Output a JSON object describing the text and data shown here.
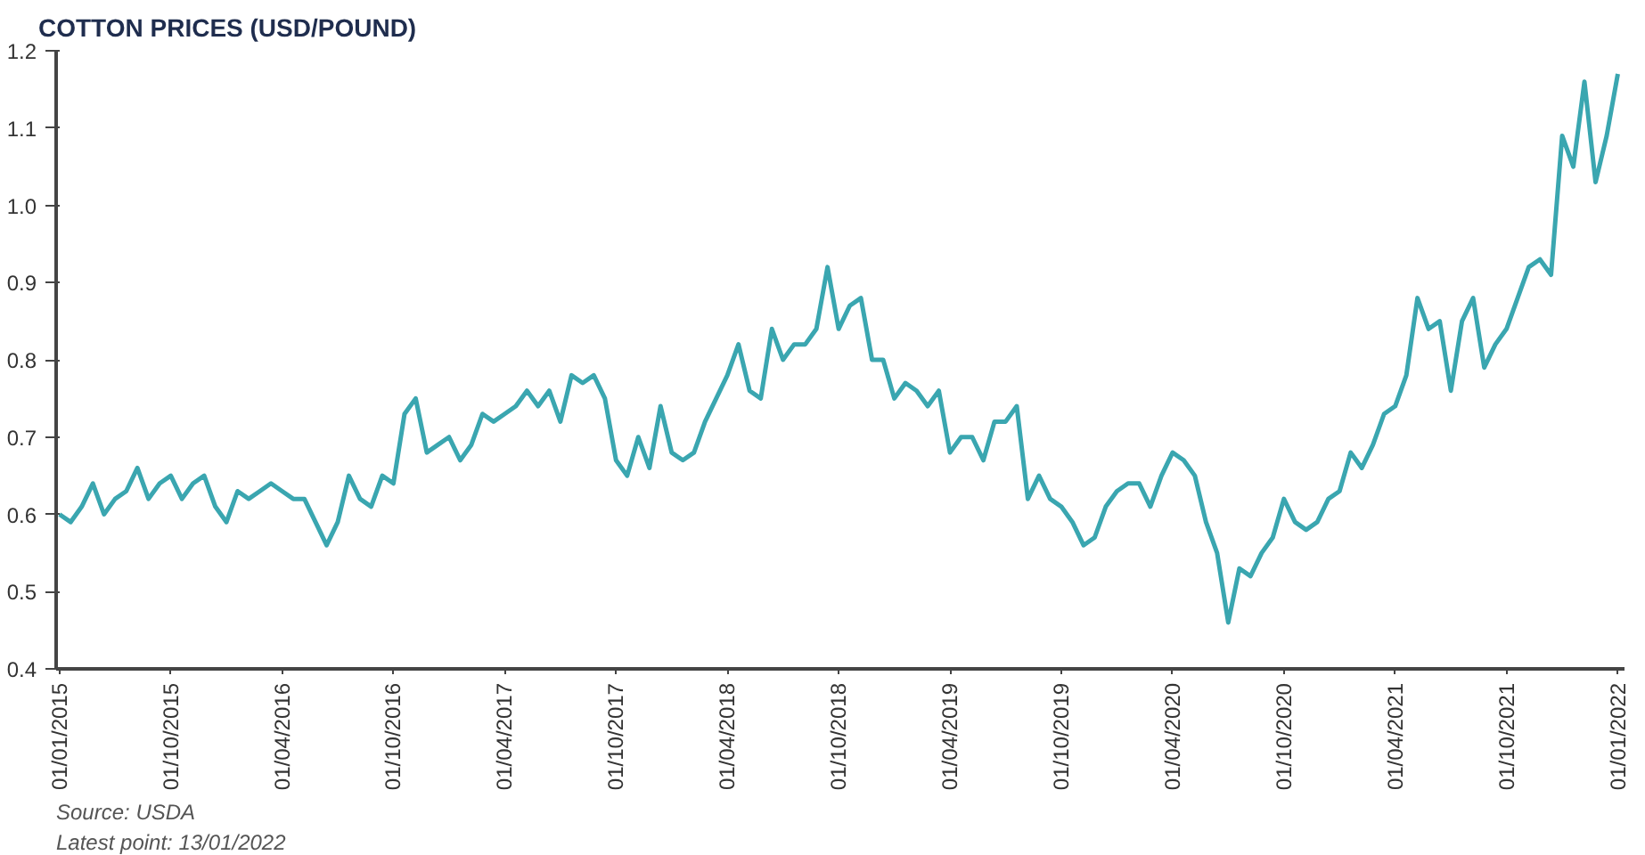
{
  "chart_data": {
    "type": "line",
    "title": "COTTON PRICES (USD/POUND)",
    "annotations": [
      "Source: USDA",
      "Latest point: 13/01/2022"
    ],
    "categories": [
      "01/01/2015",
      null,
      null,
      null,
      null,
      null,
      null,
      null,
      null,
      null,
      "01/10/2015",
      null,
      null,
      null,
      null,
      null,
      null,
      null,
      null,
      null,
      "01/04/2016",
      null,
      null,
      null,
      null,
      null,
      null,
      null,
      null,
      null,
      "01/10/2016",
      null,
      null,
      null,
      null,
      null,
      null,
      null,
      null,
      null,
      "01/04/2017",
      null,
      null,
      null,
      null,
      null,
      null,
      null,
      null,
      null,
      "01/10/2017",
      null,
      null,
      null,
      null,
      null,
      null,
      null,
      null,
      null,
      "01/04/2018",
      null,
      null,
      null,
      null,
      null,
      null,
      null,
      null,
      null,
      "01/10/2018",
      null,
      null,
      null,
      null,
      null,
      null,
      null,
      null,
      null,
      "01/04/2019",
      null,
      null,
      null,
      null,
      null,
      null,
      null,
      null,
      null,
      "01/10/2019",
      null,
      null,
      null,
      null,
      null,
      null,
      null,
      null,
      null,
      "01/04/2020",
      null,
      null,
      null,
      null,
      null,
      null,
      null,
      null,
      null,
      "01/10/2020",
      null,
      null,
      null,
      null,
      null,
      null,
      null,
      null,
      null,
      "01/04/2021",
      null,
      null,
      null,
      null,
      null,
      null,
      null,
      null,
      null,
      "01/10/2021",
      null,
      null,
      null,
      null,
      null,
      null,
      null,
      null,
      null,
      "01/01/2022"
    ],
    "ylim": [
      0.4,
      1.2
    ],
    "yticks": [
      0.4,
      0.5,
      0.6,
      0.7,
      0.8,
      0.9,
      {
        "value": 1.0,
        "label": "1.0"
      },
      1.1,
      1.2
    ],
    "grid": false,
    "line_style": "solid",
    "series": [
      {
        "color": "#3aa6b0",
        "values": [
          0.6,
          0.59,
          0.61,
          0.64,
          0.6,
          0.62,
          0.63,
          0.66,
          0.62,
          0.64,
          0.65,
          0.62,
          0.64,
          0.65,
          0.61,
          0.59,
          0.63,
          0.62,
          0.63,
          0.64,
          0.63,
          0.62,
          0.62,
          0.59,
          0.56,
          0.59,
          0.65,
          0.62,
          0.61,
          0.65,
          0.64,
          0.73,
          0.75,
          0.68,
          0.69,
          0.7,
          0.67,
          0.69,
          0.73,
          0.72,
          0.73,
          0.74,
          0.76,
          0.74,
          0.76,
          0.72,
          0.78,
          0.77,
          0.78,
          0.75,
          0.67,
          0.65,
          0.7,
          0.66,
          0.74,
          0.68,
          0.67,
          0.68,
          0.72,
          0.75,
          0.78,
          0.82,
          0.76,
          0.75,
          0.84,
          0.8,
          0.82,
          0.82,
          0.84,
          0.92,
          0.84,
          0.87,
          0.88,
          0.8,
          0.8,
          0.75,
          0.77,
          0.76,
          0.74,
          0.76,
          0.68,
          0.7,
          0.7,
          0.67,
          0.72,
          0.72,
          0.74,
          0.62,
          0.65,
          0.62,
          0.61,
          0.59,
          0.56,
          0.57,
          0.61,
          0.63,
          0.64,
          0.64,
          0.61,
          0.65,
          0.68,
          0.67,
          0.65,
          0.59,
          0.55,
          0.46,
          0.53,
          0.52,
          0.55,
          0.57,
          0.62,
          0.59,
          0.58,
          0.59,
          0.62,
          0.63,
          0.68,
          0.66,
          0.69,
          0.73,
          0.74,
          0.78,
          0.88,
          0.84,
          0.85,
          0.76,
          0.85,
          0.88,
          0.79,
          0.82,
          0.84,
          0.88,
          0.92,
          0.93,
          0.91,
          1.09,
          1.05,
          1.16,
          1.03,
          1.09,
          1.17
        ]
      }
    ]
  }
}
